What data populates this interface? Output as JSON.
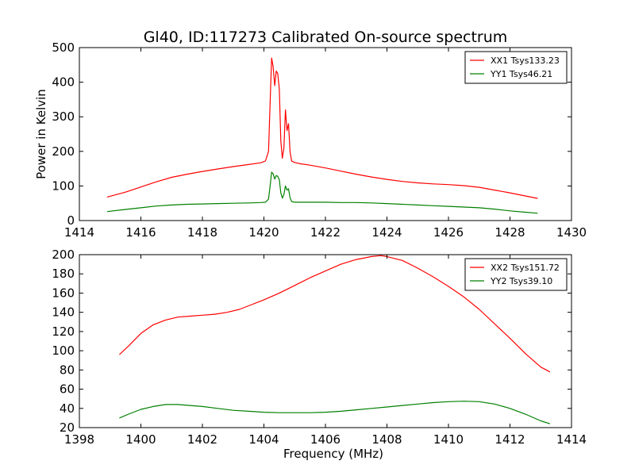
{
  "figure": {
    "title": "Gl40, ID:117273 Calibrated On-source spectrum"
  },
  "chart_data": [
    {
      "type": "line",
      "title": "Gl40, ID:117273 Calibrated On-source spectrum",
      "xlabel": "",
      "ylabel": "Power in Kelvin",
      "xlim": [
        1414,
        1430
      ],
      "ylim": [
        0,
        500
      ],
      "xticks": [
        1414,
        1416,
        1418,
        1420,
        1422,
        1424,
        1426,
        1428,
        1430
      ],
      "yticks": [
        0,
        100,
        200,
        300,
        400,
        500
      ],
      "grid": false,
      "legend_position": "top-right",
      "series": [
        {
          "name": "XX1 Tsys133.23",
          "color": "#ff0000",
          "x": [
            1414.9,
            1415.5,
            1416.0,
            1416.5,
            1417.0,
            1417.5,
            1418.0,
            1418.5,
            1419.0,
            1419.5,
            1419.9,
            1420.05,
            1420.15,
            1420.2,
            1420.25,
            1420.3,
            1420.35,
            1420.4,
            1420.45,
            1420.5,
            1420.55,
            1420.6,
            1420.65,
            1420.7,
            1420.75,
            1420.8,
            1420.85,
            1420.9,
            1420.95,
            1421.0,
            1421.2,
            1421.5,
            1422.0,
            1422.5,
            1423.0,
            1423.5,
            1424.0,
            1424.5,
            1425.0,
            1425.5,
            1426.0,
            1426.5,
            1427.0,
            1427.5,
            1428.0,
            1428.5,
            1428.9
          ],
          "values": [
            68,
            82,
            97,
            112,
            125,
            134,
            142,
            149,
            156,
            162,
            167,
            172,
            200,
            340,
            470,
            445,
            390,
            432,
            425,
            380,
            230,
            180,
            210,
            320,
            260,
            280,
            200,
            172,
            170,
            168,
            164,
            160,
            152,
            143,
            134,
            126,
            119,
            113,
            109,
            106,
            104,
            101,
            96,
            88,
            80,
            71,
            64
          ]
        },
        {
          "name": "YY1 Tsys46.21",
          "color": "#008000",
          "x": [
            1414.9,
            1415.5,
            1416.0,
            1416.5,
            1417.0,
            1417.5,
            1418.0,
            1418.5,
            1419.0,
            1419.5,
            1419.9,
            1420.05,
            1420.15,
            1420.2,
            1420.25,
            1420.3,
            1420.35,
            1420.4,
            1420.45,
            1420.5,
            1420.55,
            1420.6,
            1420.65,
            1420.7,
            1420.75,
            1420.8,
            1420.85,
            1420.9,
            1420.95,
            1421.0,
            1421.2,
            1421.5,
            1422.0,
            1422.5,
            1423.0,
            1423.5,
            1424.0,
            1424.5,
            1425.0,
            1425.5,
            1426.0,
            1426.5,
            1427.0,
            1427.5,
            1428.0,
            1428.5,
            1428.9
          ],
          "values": [
            26,
            32,
            37,
            42,
            45,
            47,
            48,
            49,
            50,
            51,
            52,
            53,
            62,
            100,
            140,
            135,
            120,
            130,
            128,
            118,
            80,
            65,
            75,
            100,
            88,
            92,
            66,
            55,
            54,
            53,
            53,
            53,
            53,
            52,
            52,
            51,
            49,
            47,
            45,
            43,
            41,
            39,
            37,
            33,
            28,
            24,
            21
          ]
        }
      ]
    },
    {
      "type": "line",
      "title": "",
      "xlabel": "Frequency (MHz)",
      "ylabel": "",
      "xlim": [
        1398,
        1414
      ],
      "ylim": [
        20,
        200
      ],
      "xticks": [
        1398,
        1400,
        1402,
        1404,
        1406,
        1408,
        1410,
        1412,
        1414
      ],
      "yticks": [
        20,
        40,
        60,
        80,
        100,
        120,
        140,
        160,
        180,
        200
      ],
      "grid": false,
      "legend_position": "top-right",
      "series": [
        {
          "name": "XX2 Tsys151.72",
          "color": "#ff0000",
          "x": [
            1399.3,
            1399.6,
            1400.0,
            1400.4,
            1400.8,
            1401.2,
            1401.6,
            1402.0,
            1402.4,
            1402.8,
            1403.2,
            1403.6,
            1404.0,
            1404.5,
            1405.0,
            1405.5,
            1406.0,
            1406.5,
            1407.0,
            1407.5,
            1407.8,
            1408.0,
            1408.5,
            1409.0,
            1409.5,
            1410.0,
            1410.5,
            1411.0,
            1411.5,
            1412.0,
            1412.5,
            1413.0,
            1413.3
          ],
          "values": [
            96,
            105,
            118,
            127,
            132,
            135,
            136,
            137,
            138,
            140,
            143,
            148,
            153,
            160,
            168,
            176,
            183,
            190,
            195,
            198,
            199,
            198,
            194,
            186,
            177,
            167,
            156,
            143,
            128,
            113,
            97,
            83,
            78
          ]
        },
        {
          "name": "YY2 Tsys39.10",
          "color": "#008000",
          "x": [
            1399.3,
            1399.6,
            1400.0,
            1400.4,
            1400.8,
            1401.2,
            1401.6,
            1402.0,
            1402.5,
            1403.0,
            1403.5,
            1404.0,
            1404.5,
            1405.0,
            1405.5,
            1406.0,
            1406.5,
            1407.0,
            1407.5,
            1408.0,
            1408.5,
            1409.0,
            1409.5,
            1410.0,
            1410.5,
            1411.0,
            1411.5,
            1412.0,
            1412.5,
            1413.0,
            1413.3
          ],
          "values": [
            30,
            34,
            39,
            42,
            44,
            44,
            43,
            42,
            40,
            38,
            37,
            36,
            35.5,
            35.5,
            35.5,
            36,
            37,
            38.5,
            40,
            41.5,
            43,
            44.5,
            46,
            47,
            47.5,
            47,
            44.5,
            40,
            34,
            27,
            24
          ]
        }
      ]
    }
  ]
}
